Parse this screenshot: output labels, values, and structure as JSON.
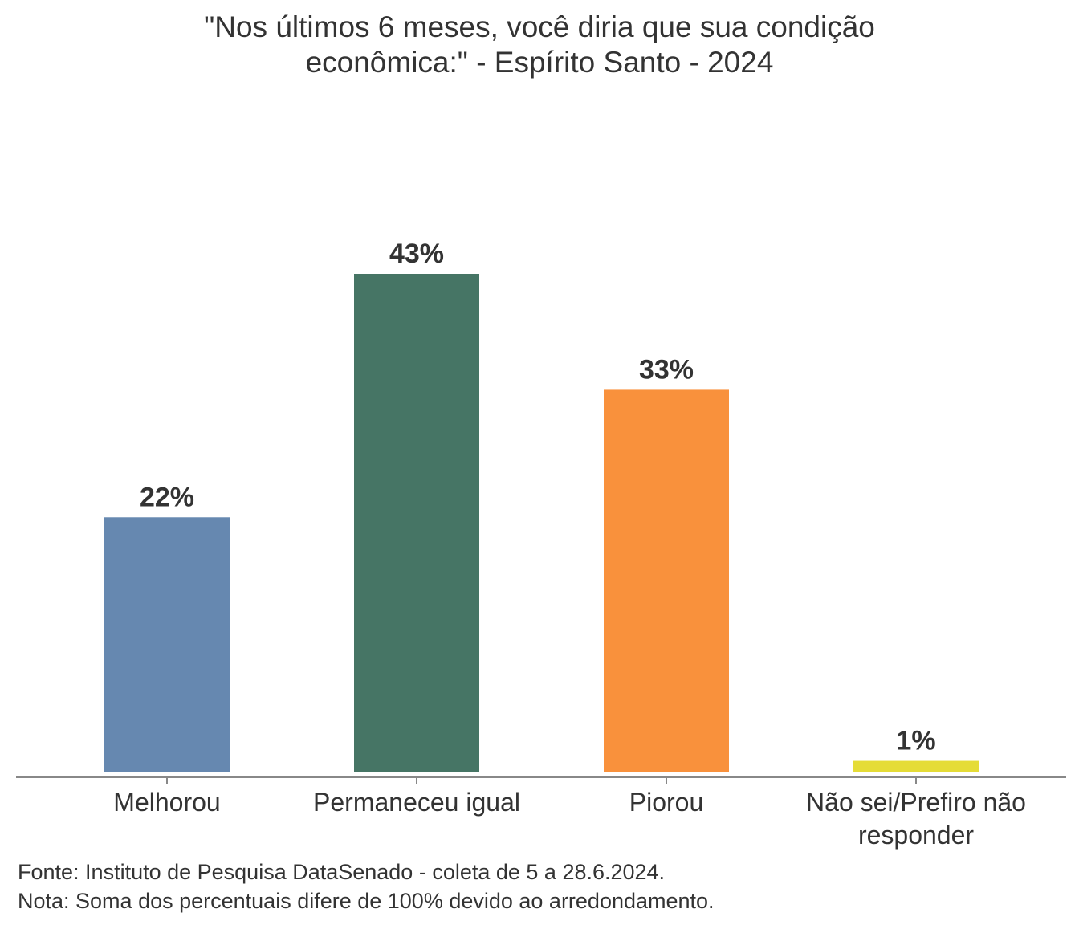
{
  "chart_data": {
    "type": "bar",
    "title_lines": [
      "\"Nos últimos 6 meses, você diria que sua condição",
      "econômica:\" - Espírito Santo - 2024"
    ],
    "categories": [
      [
        "Melhorou"
      ],
      [
        "Permaneceu igual"
      ],
      [
        "Piorou"
      ],
      [
        "Não sei/Prefiro não",
        "responder"
      ]
    ],
    "values": [
      22,
      43,
      33,
      1
    ],
    "value_labels": [
      "22%",
      "43%",
      "33%",
      "1%"
    ],
    "colors": [
      "#6688b0",
      "#467565",
      "#f9913c",
      "#e5dc37"
    ],
    "ylim": [
      0,
      43
    ],
    "grid": false,
    "legend": "none"
  },
  "footer": {
    "source": "Fonte: Instituto de Pesquisa DataSenado - coleta de 5 a 28.6.2024.",
    "note": "Nota: Soma dos percentuais difere de 100% devido ao arredondamento."
  }
}
